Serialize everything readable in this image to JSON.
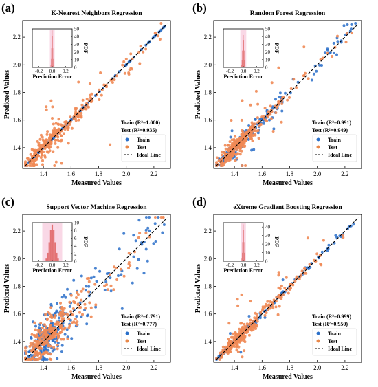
{
  "colors": {
    "train": "#2a6fc9",
    "test": "#e8884a",
    "test_fill": "#f08a55",
    "hist": "#e06767",
    "hist_band": "#f6c8dc",
    "ideal": "#000000"
  },
  "chart_data": [
    {
      "type": "scatter",
      "panel_label": "(a)",
      "title": "K-Nearest Neighbors Regression",
      "xlabel": "Measured  Values",
      "ylabel": "Predicted  Values",
      "xlim": [
        1.25,
        2.32
      ],
      "ylim": [
        1.25,
        2.32
      ],
      "xticks": [
        "1.4",
        "1.6",
        "1.8",
        "2.0",
        "2.2"
      ],
      "yticks": [
        "1.4",
        "1.6",
        "1.8",
        "2.0",
        "2.2"
      ],
      "grid": false,
      "legend_position": "bottom-right",
      "stats": [
        "Train (R²=1.000)",
        "Test (R²=0.935)"
      ],
      "legend": [
        "Train",
        "Test",
        "Ideal Line"
      ],
      "spread": 0.035,
      "outlier_rate": 0.12,
      "train_spread": 0.0,
      "seed": 11,
      "inset": {
        "xlabel": "Prediction Error",
        "ylabel": "PDF",
        "xticks": [
          "-0.2",
          "0.0",
          "0.2"
        ],
        "yticks": [
          "0",
          "10",
          "20",
          "30",
          "40",
          "50"
        ],
        "ymax": 50,
        "peak": 48,
        "width": 0.012
      }
    },
    {
      "type": "scatter",
      "panel_label": "(b)",
      "title": "Random Forest Regression",
      "xlabel": "Measured  Values",
      "ylabel": "Predicted  Values",
      "xlim": [
        1.25,
        2.32
      ],
      "ylim": [
        1.25,
        2.32
      ],
      "xticks": [
        "1.4",
        "1.6",
        "1.8",
        "2.0",
        "2.2"
      ],
      "yticks": [
        "1.4",
        "1.6",
        "1.8",
        "2.0",
        "2.2"
      ],
      "grid": false,
      "legend_position": "bottom-right",
      "stats": [
        "Train (R²=0.991)",
        "Test (R²=0.949)"
      ],
      "legend": [
        "Train",
        "Test",
        "Ideal Line"
      ],
      "spread": 0.03,
      "outlier_rate": 0.08,
      "train_spread": 0.02,
      "seed": 23,
      "inset": {
        "xlabel": "Prediction Error",
        "ylabel": "PDF",
        "xticks": [
          "-0.2",
          "0.0",
          "0.2"
        ],
        "yticks": [
          "0",
          "10",
          "20",
          "30",
          "40",
          "50"
        ],
        "ymax": 50,
        "peak": 42,
        "width": 0.015
      }
    },
    {
      "type": "scatter",
      "panel_label": "(c)",
      "title": "Support Vector Machine Regression",
      "xlabel": "Measured  Values",
      "ylabel": "Predicted  Values",
      "xlim": [
        1.25,
        2.32
      ],
      "ylim": [
        1.25,
        2.32
      ],
      "xticks": [
        "1.4",
        "1.6",
        "1.8",
        "2.0",
        "2.2"
      ],
      "yticks": [
        "1.4",
        "1.6",
        "1.8",
        "2.0",
        "2.2"
      ],
      "grid": false,
      "legend_position": "bottom-right",
      "stats": [
        "Train (R²=0.791)",
        "Test (R²=0.777)"
      ],
      "legend": [
        "Train",
        "Test",
        "Ideal Line"
      ],
      "spread": 0.07,
      "outlier_rate": 0.06,
      "train_spread": 0.07,
      "seed": 37,
      "inset": {
        "xlabel": "Prediction Error",
        "ylabel": "PDF",
        "xticks": [
          "-0.2",
          "0.0",
          "0.2"
        ],
        "yticks": [
          "0",
          "2",
          "4",
          "6",
          "8",
          "10"
        ],
        "ymax": 10,
        "peak": 9.5,
        "width": 0.05
      }
    },
    {
      "type": "scatter",
      "panel_label": "(d)",
      "title": "eXtreme Gradient Boosting Regression",
      "xlabel": "Measured  Values",
      "ylabel": "Predicted  Values",
      "xlim": [
        1.25,
        2.32
      ],
      "ylim": [
        1.25,
        2.32
      ],
      "xticks": [
        "1.4",
        "1.6",
        "1.8",
        "2.0",
        "2.2"
      ],
      "yticks": [
        "1.4",
        "1.6",
        "1.8",
        "2.0",
        "2.2"
      ],
      "grid": false,
      "legend_position": "bottom-right",
      "stats": [
        "Train (R²=0.999)",
        "Test (R²=0.950)"
      ],
      "legend": [
        "Train",
        "Test",
        "Ideal Line"
      ],
      "spread": 0.03,
      "outlier_rate": 0.07,
      "train_spread": 0.006,
      "seed": 53,
      "inset": {
        "xlabel": "Prediction Error",
        "ylabel": "PDF",
        "xticks": [
          "-0.2",
          "0.0",
          "0.2"
        ],
        "yticks": [
          "0",
          "10",
          "20",
          "30",
          "40"
        ],
        "ymax": 45,
        "peak": 43,
        "width": 0.013
      }
    }
  ]
}
